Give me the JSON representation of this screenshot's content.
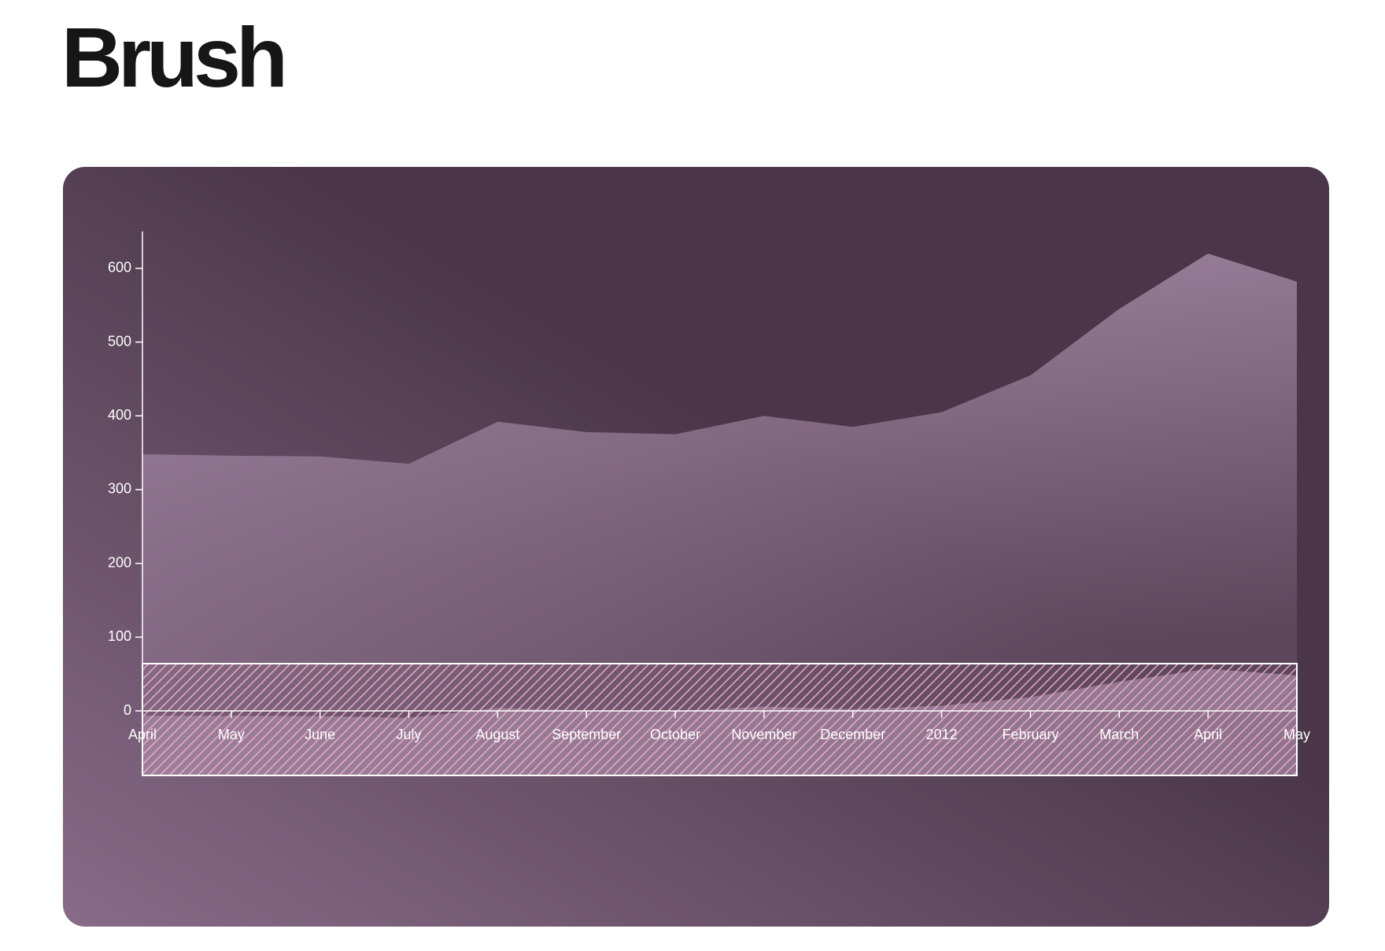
{
  "title": "Brush",
  "chart_data": {
    "type": "area",
    "x": [
      "2011-04",
      "2011-05",
      "2011-06",
      "2011-07",
      "2011-08",
      "2011-09",
      "2011-10",
      "2011-11",
      "2011-12",
      "2012-01",
      "2012-02",
      "2012-03",
      "2012-04",
      "2012-05"
    ],
    "series": [
      {
        "color": "#a58aa6",
        "values": [
          348,
          346,
          345,
          335,
          392,
          378,
          375,
          400,
          385,
          405,
          455,
          545,
          620,
          582
        ]
      }
    ],
    "xlim": [
      "2011-04",
      "2012-05"
    ],
    "xticks": [
      {
        "value": "2011-04",
        "label": "April"
      },
      {
        "value": "2011-05",
        "label": "May"
      },
      {
        "value": "2011-06",
        "label": "June"
      },
      {
        "value": "2011-07",
        "label": "July"
      },
      {
        "value": "2011-08",
        "label": "August"
      },
      {
        "value": "2011-09",
        "label": "September"
      },
      {
        "value": "2011-10",
        "label": "October"
      },
      {
        "value": "2011-11",
        "label": "November"
      },
      {
        "value": "2011-12",
        "label": "December"
      },
      {
        "value": "2012-01",
        "label": "2012"
      },
      {
        "value": "2012-02",
        "label": "February"
      },
      {
        "value": "2012-03",
        "label": "March"
      },
      {
        "value": "2012-04",
        "label": "April"
      },
      {
        "value": "2012-05",
        "label": "May"
      }
    ],
    "ylim": [
      0,
      650
    ],
    "yticks": [
      0,
      100,
      200,
      300,
      400,
      500,
      600
    ],
    "brush_color": "#f6acc8"
  }
}
